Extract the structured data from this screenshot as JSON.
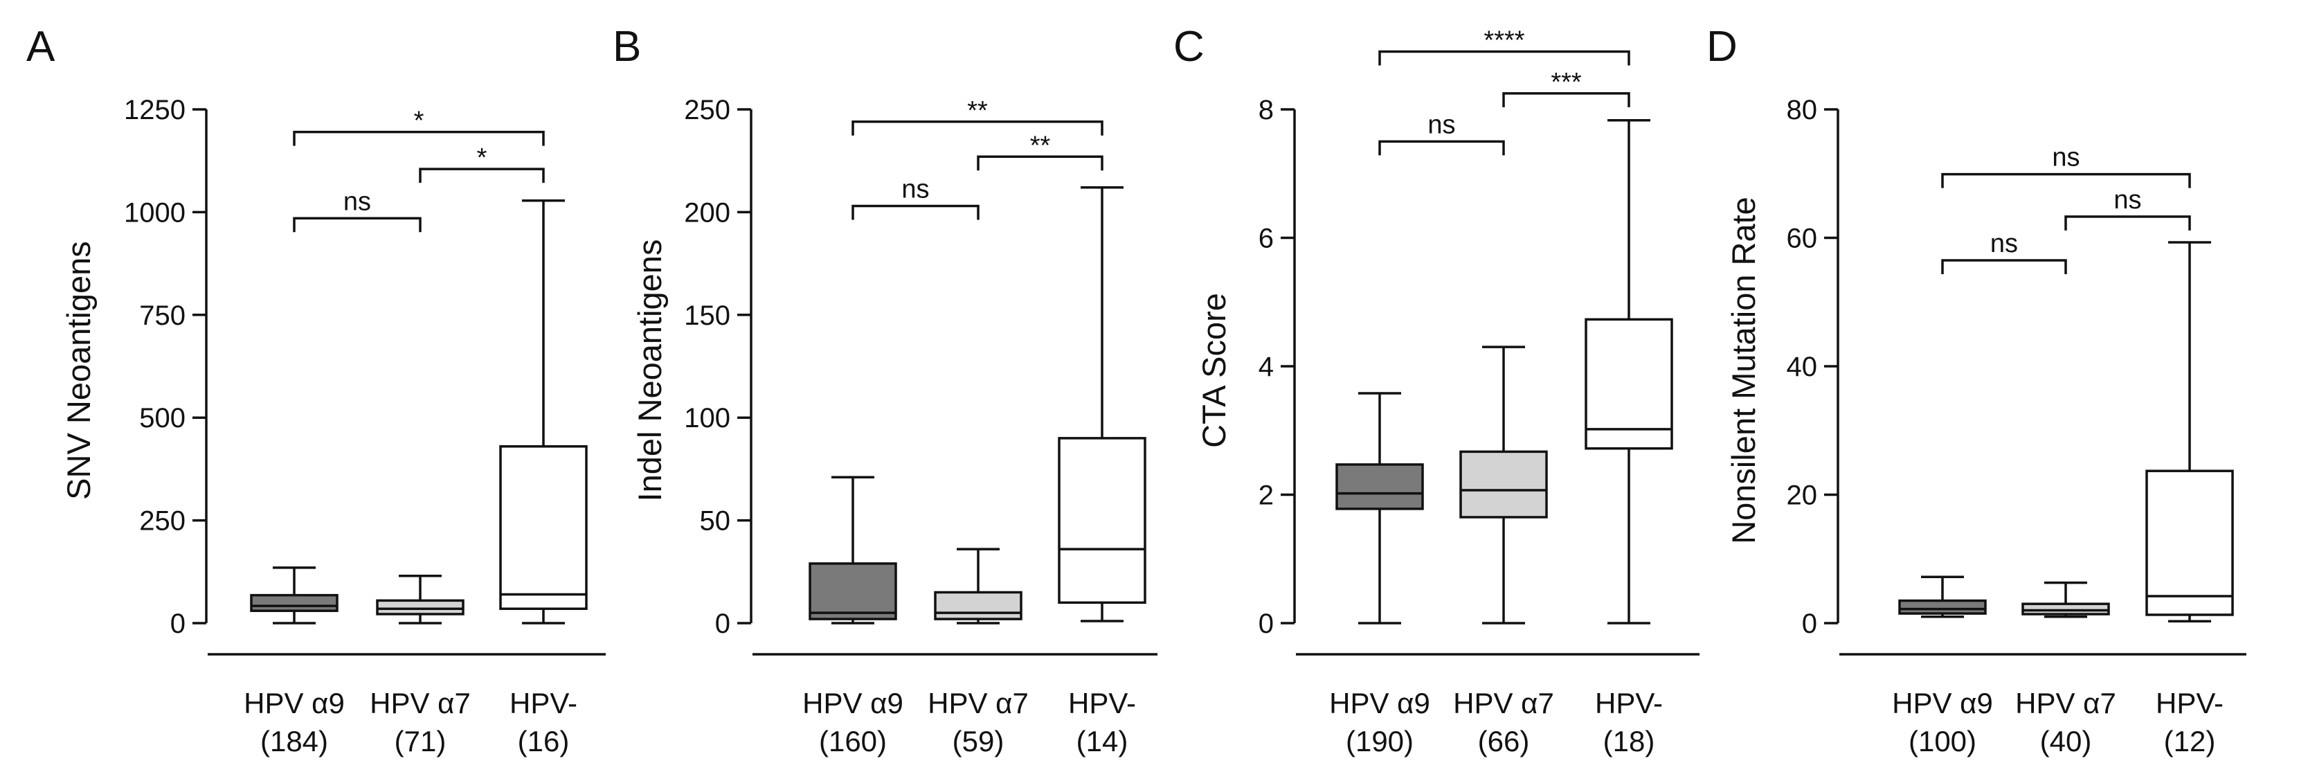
{
  "colors": {
    "alpha9": "#7a7a7a",
    "alpha7": "#d3d3d3",
    "hpvneg": "#ffffff",
    "line": "#111111"
  },
  "chart_data": [
    {
      "type": "box",
      "panel": "A",
      "ylabel": "SNV Neoantigens",
      "ylim": [
        0,
        1250
      ],
      "yticks": [
        0,
        250,
        500,
        750,
        1000,
        1250
      ],
      "categories": [
        {
          "name": "HPV α9",
          "n": "(184)",
          "fill": "alpha9",
          "min": 0,
          "q1": 30,
          "median": 42,
          "q3": 68,
          "max": 135
        },
        {
          "name": "HPV α7",
          "n": "(71)",
          "fill": "alpha7",
          "min": 0,
          "q1": 22,
          "median": 35,
          "q3": 55,
          "max": 115
        },
        {
          "name": "HPV-",
          "n": "(16)",
          "fill": "hpvneg",
          "min": 0,
          "q1": 35,
          "median": 70,
          "q3": 430,
          "max": 1028
        }
      ],
      "comparisons": [
        {
          "from": 0,
          "to": 1,
          "label": "ns",
          "at": 985
        },
        {
          "from": 1,
          "to": 2,
          "label": "*",
          "at": 1105
        },
        {
          "from": 0,
          "to": 2,
          "label": "*",
          "at": 1195
        }
      ]
    },
    {
      "type": "box",
      "panel": "B",
      "ylabel": "Indel Neoantigens",
      "ylim": [
        0,
        250
      ],
      "yticks": [
        0,
        50,
        100,
        150,
        200,
        250
      ],
      "categories": [
        {
          "name": "HPV α9",
          "n": "(160)",
          "fill": "alpha9",
          "min": 0,
          "q1": 2,
          "median": 5,
          "q3": 29,
          "max": 71
        },
        {
          "name": "HPV α7",
          "n": "(59)",
          "fill": "alpha7",
          "min": 0,
          "q1": 2,
          "median": 5,
          "q3": 15,
          "max": 36
        },
        {
          "name": "HPV-",
          "n": "(14)",
          "fill": "hpvneg",
          "min": 1,
          "q1": 10,
          "median": 36,
          "q3": 90,
          "max": 212
        }
      ],
      "comparisons": [
        {
          "from": 0,
          "to": 1,
          "label": "ns",
          "at": 203
        },
        {
          "from": 1,
          "to": 2,
          "label": "**",
          "at": 227
        },
        {
          "from": 0,
          "to": 2,
          "label": "**",
          "at": 244
        }
      ]
    },
    {
      "type": "box",
      "panel": "C",
      "ylabel": "CTA Score",
      "ylim": [
        0,
        8
      ],
      "yticks": [
        0,
        2,
        4,
        6,
        8
      ],
      "categories": [
        {
          "name": "HPV α9",
          "n": "(190)",
          "fill": "alpha9",
          "min": 0,
          "q1": 1.78,
          "median": 2.02,
          "q3": 2.47,
          "max": 3.58
        },
        {
          "name": "HPV α7",
          "n": "(66)",
          "fill": "alpha7",
          "min": 0,
          "q1": 1.65,
          "median": 2.07,
          "q3": 2.67,
          "max": 4.3
        },
        {
          "name": "HPV-",
          "n": "(18)",
          "fill": "hpvneg",
          "min": 0,
          "q1": 2.72,
          "median": 3.02,
          "q3": 4.73,
          "max": 7.83
        }
      ],
      "comparisons": [
        {
          "from": 0,
          "to": 1,
          "label": "ns",
          "at": 7.5
        },
        {
          "from": 1,
          "to": 2,
          "label": "***",
          "at": 8.25
        },
        {
          "from": 0,
          "to": 2,
          "label": "****",
          "at": 8.9
        }
      ]
    },
    {
      "type": "box",
      "panel": "D",
      "ylabel": "Nonsilent Mutation Rate",
      "ylim": [
        0,
        80
      ],
      "yticks": [
        0,
        20,
        40,
        60,
        80
      ],
      "categories": [
        {
          "name": "HPV α9",
          "n": "(100)",
          "fill": "alpha9",
          "min": 1,
          "q1": 1.5,
          "median": 2.2,
          "q3": 3.5,
          "max": 7.2
        },
        {
          "name": "HPV α7",
          "n": "(40)",
          "fill": "alpha7",
          "min": 1,
          "q1": 1.4,
          "median": 2,
          "q3": 3,
          "max": 6.3
        },
        {
          "name": "HPV-",
          "n": "(12)",
          "fill": "hpvneg",
          "min": 0.3,
          "q1": 1.3,
          "median": 4.2,
          "q3": 23.7,
          "max": 59.3
        }
      ],
      "comparisons": [
        {
          "from": 0,
          "to": 1,
          "label": "ns",
          "at": 56.5
        },
        {
          "from": 1,
          "to": 2,
          "label": "ns",
          "at": 63.3
        },
        {
          "from": 0,
          "to": 2,
          "label": "ns",
          "at": 69.9
        }
      ]
    }
  ]
}
